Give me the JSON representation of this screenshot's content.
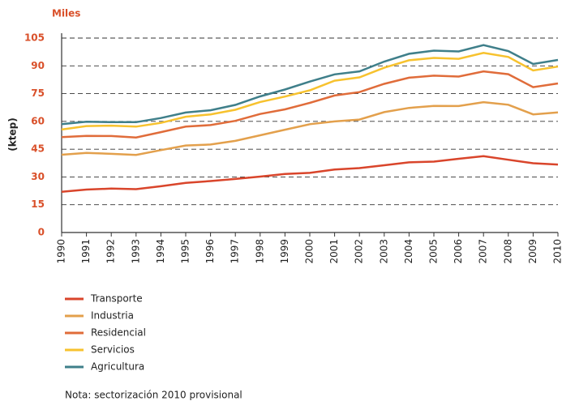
{
  "chart_data": {
    "type": "line",
    "stacked": true,
    "y_unit_label": "Miles",
    "ylabel": "(ktep)",
    "note": "Nota: sectorización 2010 provisional",
    "x": [
      1990,
      1991,
      1992,
      1993,
      1994,
      1995,
      1996,
      1997,
      1998,
      1999,
      2000,
      2001,
      2002,
      2003,
      2004,
      2005,
      2006,
      2007,
      2008,
      2009,
      2010
    ],
    "xlim": [
      1990,
      2010
    ],
    "ylim": [
      0,
      105
    ],
    "yticks": [
      0,
      15,
      30,
      45,
      60,
      75,
      90,
      105
    ],
    "grid": true,
    "series": [
      {
        "name": "Transporte",
        "color": "#d9452b",
        "values": [
          22,
          23.2,
          23.7,
          23.4,
          25,
          26.8,
          27.8,
          28.9,
          30.2,
          31.6,
          32.2,
          34,
          34.8,
          36.3,
          37.9,
          38.3,
          39.8,
          41.2,
          39.3,
          37.4,
          36.7
        ]
      },
      {
        "name": "Industria",
        "color": "#e3a04c",
        "values": [
          20,
          19.8,
          18.8,
          18.5,
          19.5,
          20.2,
          19.7,
          20.6,
          22.3,
          23.9,
          26.3,
          26,
          26.2,
          28.7,
          29.4,
          30.1,
          28.5,
          29.2,
          29.7,
          26.4,
          28.2
        ]
      },
      {
        "name": "Residencial",
        "color": "#e06c3a",
        "values": [
          9.5,
          9.2,
          9.6,
          9.4,
          9.7,
          10.2,
          10.5,
          10.8,
          11.5,
          11,
          11.5,
          14,
          14.8,
          15.3,
          16.3,
          16.3,
          15.9,
          16.6,
          16.5,
          14.7,
          15.6
        ]
      },
      {
        "name": "Servicios",
        "color": "#f7c22e",
        "values": [
          4.1,
          5.3,
          5.6,
          5.9,
          5,
          5.3,
          5.8,
          6,
          6.5,
          6.9,
          6.8,
          8,
          8,
          8.7,
          9.4,
          9.6,
          9.6,
          10,
          9.3,
          9,
          9.1
        ]
      },
      {
        "name": "Agricultura",
        "color": "#3f7f8a",
        "values": [
          2.9,
          2.3,
          1.9,
          2.4,
          2.6,
          2.3,
          2.2,
          2.6,
          3,
          3.8,
          4.7,
          3.4,
          3.2,
          3.3,
          3.5,
          3.9,
          4,
          4.2,
          3.2,
          3.5,
          3.6
        ]
      }
    ]
  }
}
